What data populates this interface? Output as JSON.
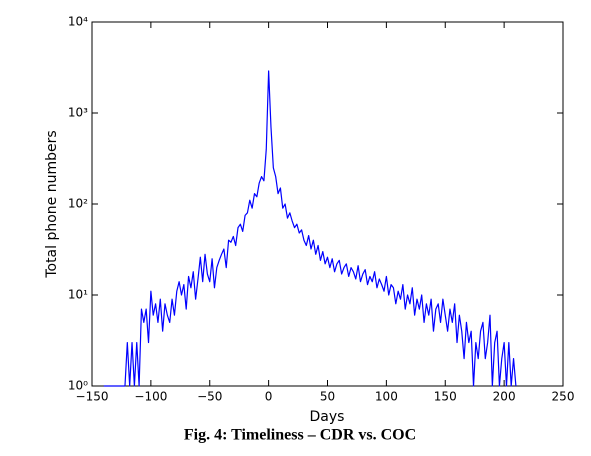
{
  "chart_data": {
    "type": "line",
    "caption": "Fig. 4: Timeliness – CDR vs. COC",
    "xlabel": "Days",
    "ylabel": "Total phone numbers",
    "log_y": true,
    "xlim": [
      -150,
      250
    ],
    "ylim": [
      1,
      10000
    ],
    "xticks": [
      {
        "value": -150,
        "label": "−150"
      },
      {
        "value": -100,
        "label": "−100"
      },
      {
        "value": -50,
        "label": "−50"
      },
      0,
      50,
      100,
      150,
      200,
      250
    ],
    "yticks": [
      {
        "value": 1,
        "label": "10⁰"
      },
      {
        "value": 10,
        "label": "10¹"
      },
      {
        "value": 100,
        "label": "10²"
      },
      {
        "value": 1000,
        "label": "10³"
      },
      {
        "value": 10000,
        "label": "10⁴"
      }
    ],
    "x": [
      -140,
      -138,
      -136,
      -134,
      -132,
      -130,
      -128,
      -126,
      -124,
      -122,
      -120,
      -118,
      -116,
      -114,
      -112,
      -110,
      -108,
      -106,
      -104,
      -102,
      -100,
      -98,
      -96,
      -94,
      -92,
      -90,
      -88,
      -86,
      -84,
      -82,
      -80,
      -78,
      -76,
      -74,
      -72,
      -70,
      -68,
      -66,
      -64,
      -62,
      -60,
      -58,
      -56,
      -54,
      -52,
      -50,
      -48,
      -46,
      -44,
      -42,
      -40,
      -38,
      -36,
      -34,
      -32,
      -30,
      -28,
      -26,
      -24,
      -22,
      -20,
      -18,
      -16,
      -14,
      -12,
      -10,
      -8,
      -6,
      -4,
      -2,
      0,
      2,
      4,
      6,
      8,
      10,
      12,
      14,
      16,
      18,
      20,
      22,
      24,
      26,
      28,
      30,
      32,
      34,
      36,
      38,
      40,
      42,
      44,
      46,
      48,
      50,
      52,
      54,
      56,
      58,
      60,
      62,
      64,
      66,
      68,
      70,
      72,
      74,
      76,
      78,
      80,
      82,
      84,
      86,
      88,
      90,
      92,
      94,
      96,
      98,
      100,
      102,
      104,
      106,
      108,
      110,
      112,
      114,
      116,
      118,
      120,
      122,
      124,
      126,
      128,
      130,
      132,
      134,
      136,
      138,
      140,
      142,
      144,
      146,
      148,
      150,
      152,
      154,
      156,
      158,
      160,
      162,
      164,
      166,
      168,
      170,
      172,
      174,
      176,
      178,
      180,
      182,
      184,
      186,
      188,
      190,
      192,
      194,
      196,
      198,
      200,
      202,
      204,
      206,
      208,
      210
    ],
    "series": [
      {
        "name": null,
        "color": "#0000ff",
        "values": [
          1,
          1,
          1,
          1,
          1,
          1,
          1,
          1,
          1,
          1,
          3,
          1,
          3,
          1,
          3,
          1,
          7,
          5,
          7,
          3,
          11,
          6,
          8,
          5,
          9,
          4,
          8,
          6,
          5,
          9,
          6,
          11,
          14,
          10,
          13,
          7,
          16,
          12,
          18,
          9,
          15,
          26,
          14,
          28,
          17,
          14,
          25,
          12,
          20,
          24,
          28,
          32,
          20,
          40,
          38,
          44,
          35,
          55,
          60,
          50,
          75,
          80,
          110,
          90,
          130,
          120,
          170,
          200,
          180,
          400,
          2900,
          700,
          250,
          200,
          130,
          150,
          90,
          100,
          70,
          80,
          65,
          55,
          60,
          48,
          52,
          40,
          35,
          45,
          32,
          40,
          28,
          35,
          24,
          30,
          22,
          26,
          20,
          25,
          18,
          22,
          24,
          17,
          20,
          22,
          16,
          20,
          18,
          15,
          21,
          14,
          17,
          19,
          13,
          16,
          14,
          18,
          12,
          15,
          13,
          11,
          16,
          10,
          13,
          12,
          8,
          11,
          9,
          13,
          7,
          10,
          8,
          12,
          6,
          9,
          7,
          10,
          5,
          8,
          6,
          9,
          4,
          7,
          8,
          5,
          9,
          6,
          4,
          7,
          5,
          8,
          3,
          6,
          4,
          2,
          5,
          3,
          4,
          1,
          3,
          2,
          4,
          5,
          2,
          3,
          6,
          1,
          3,
          4,
          1,
          2,
          3,
          1,
          3,
          1,
          2,
          1
        ]
      }
    ]
  }
}
